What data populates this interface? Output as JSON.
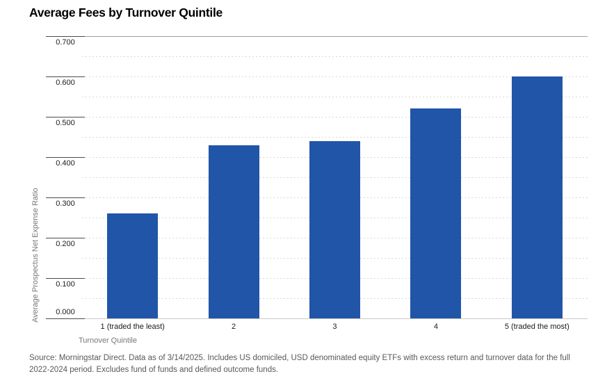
{
  "title": "Average Fees by Turnover Quintile",
  "chart_data": {
    "type": "bar",
    "categories": [
      "1 (traded the least)",
      "2",
      "3",
      "4",
      "5 (traded the most)"
    ],
    "values": [
      0.26,
      0.43,
      0.44,
      0.52,
      0.6
    ],
    "title": "Average Fees by Turnover Quintile",
    "xlabel": "Turnover Quintile",
    "ylabel": "Average Prospectus Net Expense Ratio",
    "ylim": [
      0,
      0.7
    ],
    "ytick_step": 0.1,
    "minor_grid_step": 0.05,
    "ytick_labels": [
      "0.000",
      "0.100",
      "0.200",
      "0.300",
      "0.400",
      "0.500",
      "0.600",
      "0.700"
    ],
    "grid": "dotted-horizontal",
    "legend": "none",
    "colors": {
      "bar": "#2155A8",
      "grid_dotted": "#d8d8d8",
      "top_rule": "#9e9e9e",
      "axis_line": "#c9c9c9",
      "tick_rule": "#4a4a4a",
      "tick_text": "#1a1a1a",
      "muted_text": "#767676",
      "footer_text": "#58585a",
      "title_text": "#000000"
    }
  },
  "footer": {
    "line1": "Source: Morningstar Direct. Data as of 3/14/2025. Includes US domiciled, USD denominated equity ETFs with excess return and turnover data for the full",
    "line2": "2022-2024 period. Excludes fund of funds and defined outcome funds."
  }
}
